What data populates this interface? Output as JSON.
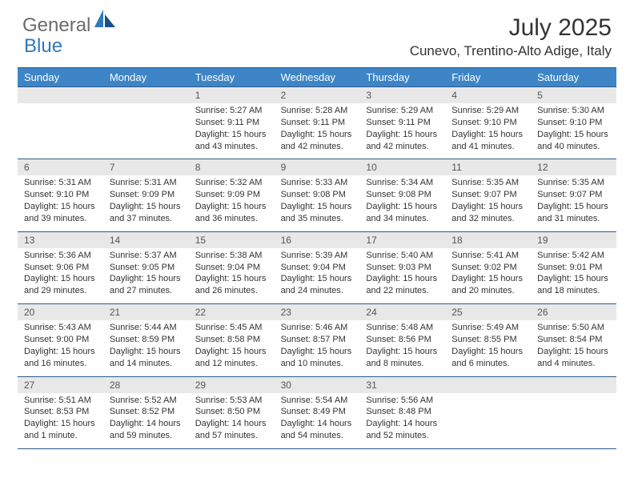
{
  "brand": {
    "part1": "General",
    "part2": "Blue"
  },
  "title": "July 2025",
  "location": "Cunevo, Trentino-Alto Adige, Italy",
  "colors": {
    "header_bg": "#3d85c6",
    "border": "#2d5a87",
    "daynum_bg": "#e8e8e8",
    "brand_gray": "#6b6b6b",
    "brand_blue": "#2f78bf"
  },
  "day_labels": [
    "Sunday",
    "Monday",
    "Tuesday",
    "Wednesday",
    "Thursday",
    "Friday",
    "Saturday"
  ],
  "weeks": [
    {
      "nums": [
        "",
        "",
        "1",
        "2",
        "3",
        "4",
        "5"
      ],
      "cells": [
        {
          "sunrise": "",
          "sunset": "",
          "daylight": ""
        },
        {
          "sunrise": "",
          "sunset": "",
          "daylight": ""
        },
        {
          "sunrise": "Sunrise: 5:27 AM",
          "sunset": "Sunset: 9:11 PM",
          "daylight": "Daylight: 15 hours and 43 minutes."
        },
        {
          "sunrise": "Sunrise: 5:28 AM",
          "sunset": "Sunset: 9:11 PM",
          "daylight": "Daylight: 15 hours and 42 minutes."
        },
        {
          "sunrise": "Sunrise: 5:29 AM",
          "sunset": "Sunset: 9:11 PM",
          "daylight": "Daylight: 15 hours and 42 minutes."
        },
        {
          "sunrise": "Sunrise: 5:29 AM",
          "sunset": "Sunset: 9:10 PM",
          "daylight": "Daylight: 15 hours and 41 minutes."
        },
        {
          "sunrise": "Sunrise: 5:30 AM",
          "sunset": "Sunset: 9:10 PM",
          "daylight": "Daylight: 15 hours and 40 minutes."
        }
      ]
    },
    {
      "nums": [
        "6",
        "7",
        "8",
        "9",
        "10",
        "11",
        "12"
      ],
      "cells": [
        {
          "sunrise": "Sunrise: 5:31 AM",
          "sunset": "Sunset: 9:10 PM",
          "daylight": "Daylight: 15 hours and 39 minutes."
        },
        {
          "sunrise": "Sunrise: 5:31 AM",
          "sunset": "Sunset: 9:09 PM",
          "daylight": "Daylight: 15 hours and 37 minutes."
        },
        {
          "sunrise": "Sunrise: 5:32 AM",
          "sunset": "Sunset: 9:09 PM",
          "daylight": "Daylight: 15 hours and 36 minutes."
        },
        {
          "sunrise": "Sunrise: 5:33 AM",
          "sunset": "Sunset: 9:08 PM",
          "daylight": "Daylight: 15 hours and 35 minutes."
        },
        {
          "sunrise": "Sunrise: 5:34 AM",
          "sunset": "Sunset: 9:08 PM",
          "daylight": "Daylight: 15 hours and 34 minutes."
        },
        {
          "sunrise": "Sunrise: 5:35 AM",
          "sunset": "Sunset: 9:07 PM",
          "daylight": "Daylight: 15 hours and 32 minutes."
        },
        {
          "sunrise": "Sunrise: 5:35 AM",
          "sunset": "Sunset: 9:07 PM",
          "daylight": "Daylight: 15 hours and 31 minutes."
        }
      ]
    },
    {
      "nums": [
        "13",
        "14",
        "15",
        "16",
        "17",
        "18",
        "19"
      ],
      "cells": [
        {
          "sunrise": "Sunrise: 5:36 AM",
          "sunset": "Sunset: 9:06 PM",
          "daylight": "Daylight: 15 hours and 29 minutes."
        },
        {
          "sunrise": "Sunrise: 5:37 AM",
          "sunset": "Sunset: 9:05 PM",
          "daylight": "Daylight: 15 hours and 27 minutes."
        },
        {
          "sunrise": "Sunrise: 5:38 AM",
          "sunset": "Sunset: 9:04 PM",
          "daylight": "Daylight: 15 hours and 26 minutes."
        },
        {
          "sunrise": "Sunrise: 5:39 AM",
          "sunset": "Sunset: 9:04 PM",
          "daylight": "Daylight: 15 hours and 24 minutes."
        },
        {
          "sunrise": "Sunrise: 5:40 AM",
          "sunset": "Sunset: 9:03 PM",
          "daylight": "Daylight: 15 hours and 22 minutes."
        },
        {
          "sunrise": "Sunrise: 5:41 AM",
          "sunset": "Sunset: 9:02 PM",
          "daylight": "Daylight: 15 hours and 20 minutes."
        },
        {
          "sunrise": "Sunrise: 5:42 AM",
          "sunset": "Sunset: 9:01 PM",
          "daylight": "Daylight: 15 hours and 18 minutes."
        }
      ]
    },
    {
      "nums": [
        "20",
        "21",
        "22",
        "23",
        "24",
        "25",
        "26"
      ],
      "cells": [
        {
          "sunrise": "Sunrise: 5:43 AM",
          "sunset": "Sunset: 9:00 PM",
          "daylight": "Daylight: 15 hours and 16 minutes."
        },
        {
          "sunrise": "Sunrise: 5:44 AM",
          "sunset": "Sunset: 8:59 PM",
          "daylight": "Daylight: 15 hours and 14 minutes."
        },
        {
          "sunrise": "Sunrise: 5:45 AM",
          "sunset": "Sunset: 8:58 PM",
          "daylight": "Daylight: 15 hours and 12 minutes."
        },
        {
          "sunrise": "Sunrise: 5:46 AM",
          "sunset": "Sunset: 8:57 PM",
          "daylight": "Daylight: 15 hours and 10 minutes."
        },
        {
          "sunrise": "Sunrise: 5:48 AM",
          "sunset": "Sunset: 8:56 PM",
          "daylight": "Daylight: 15 hours and 8 minutes."
        },
        {
          "sunrise": "Sunrise: 5:49 AM",
          "sunset": "Sunset: 8:55 PM",
          "daylight": "Daylight: 15 hours and 6 minutes."
        },
        {
          "sunrise": "Sunrise: 5:50 AM",
          "sunset": "Sunset: 8:54 PM",
          "daylight": "Daylight: 15 hours and 4 minutes."
        }
      ]
    },
    {
      "nums": [
        "27",
        "28",
        "29",
        "30",
        "31",
        "",
        ""
      ],
      "cells": [
        {
          "sunrise": "Sunrise: 5:51 AM",
          "sunset": "Sunset: 8:53 PM",
          "daylight": "Daylight: 15 hours and 1 minute."
        },
        {
          "sunrise": "Sunrise: 5:52 AM",
          "sunset": "Sunset: 8:52 PM",
          "daylight": "Daylight: 14 hours and 59 minutes."
        },
        {
          "sunrise": "Sunrise: 5:53 AM",
          "sunset": "Sunset: 8:50 PM",
          "daylight": "Daylight: 14 hours and 57 minutes."
        },
        {
          "sunrise": "Sunrise: 5:54 AM",
          "sunset": "Sunset: 8:49 PM",
          "daylight": "Daylight: 14 hours and 54 minutes."
        },
        {
          "sunrise": "Sunrise: 5:56 AM",
          "sunset": "Sunset: 8:48 PM",
          "daylight": "Daylight: 14 hours and 52 minutes."
        },
        {
          "sunrise": "",
          "sunset": "",
          "daylight": ""
        },
        {
          "sunrise": "",
          "sunset": "",
          "daylight": ""
        }
      ]
    }
  ]
}
